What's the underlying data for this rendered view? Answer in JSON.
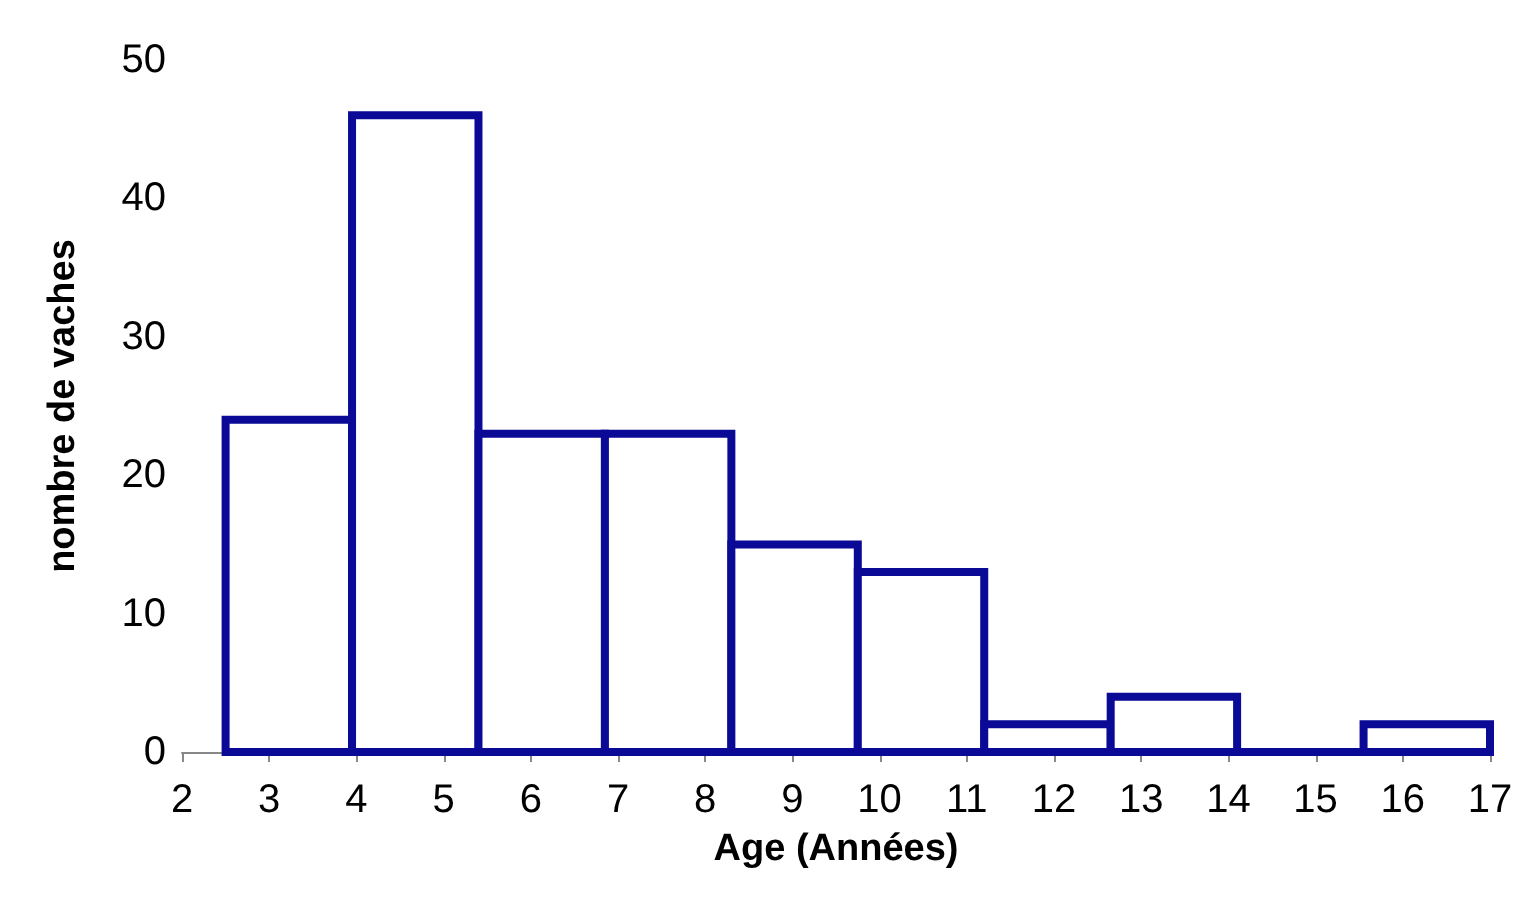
{
  "chart_data": {
    "type": "histogram",
    "xlabel": "Age (Années)",
    "ylabel": "nombre de vaches",
    "bins": [
      2.5,
      3.95,
      5.4,
      6.85,
      8.3,
      9.75,
      11.2,
      12.65,
      14.1,
      15.55,
      17
    ],
    "values": [
      24,
      46,
      23,
      23,
      15,
      13,
      2,
      4,
      0,
      2
    ],
    "color": "#0a0a96",
    "xlim": [
      2,
      17
    ],
    "xticks": [
      2,
      3,
      4,
      5,
      6,
      7,
      8,
      9,
      10,
      11,
      12,
      13,
      14,
      15,
      16,
      17
    ],
    "ylim": [
      0,
      50
    ],
    "yticks": [
      0,
      10,
      20,
      30,
      40,
      50
    ],
    "grid": false
  }
}
